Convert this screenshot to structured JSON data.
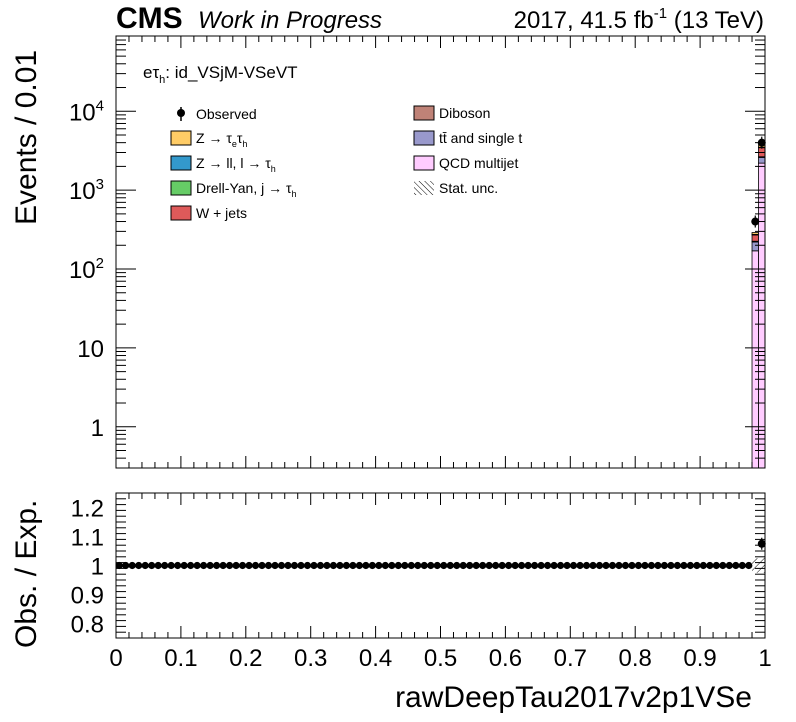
{
  "header": {
    "experiment": "CMS",
    "status": "Work in Progress",
    "lumi_prefix": "2017, 41.5 fb",
    "lumi_exp": "-1",
    "lumi_suffix": " (13 TeV)"
  },
  "channel": {
    "prefix": "eτ",
    "sub": "h",
    "suffix": ": id_VSjM-VSeVT"
  },
  "legend": {
    "observed": "Observed",
    "ztt": {
      "main": "Z → τ",
      "sub1": "e",
      "mid": "τ",
      "sub2": "h",
      "color": "#ffcc66"
    },
    "zll": {
      "main": "Z → ll, l → τ",
      "sub": "h",
      "color": "#3399cc"
    },
    "dy": {
      "main": "Drell-Yan, j → τ",
      "sub": "h",
      "color": "#66cc66"
    },
    "wjets": {
      "main": "W + jets",
      "color": "#de5a5a"
    },
    "diboson": {
      "main": "Diboson",
      "color": "#bf8277"
    },
    "ttbar": {
      "main": "tt̄ and single t",
      "color": "#9999cc"
    },
    "qcd": {
      "main": "QCD multijet",
      "color": "#ffccff"
    },
    "stat": {
      "main": "Stat. unc."
    }
  },
  "chart_data": [
    {
      "type": "bar",
      "stacked": true,
      "log_y": true,
      "ylabel": "Events / 0.01",
      "xlim": [
        0,
        1
      ],
      "ylim": [
        0.3,
        90000
      ],
      "ytick_labels": [
        "1",
        "10",
        "10^2",
        "10^3",
        "10^4"
      ],
      "bin_width": 0.01,
      "x_bins": [
        0.985,
        0.995
      ],
      "series": [
        {
          "name": "QCD multijet",
          "color": "#ffccff",
          "values": [
            170,
            2200
          ]
        },
        {
          "name": "tt̄ and single t",
          "color": "#9999cc",
          "values": [
            50,
            400
          ]
        },
        {
          "name": "Diboson",
          "color": "#bf8277",
          "values": [
            5,
            50
          ]
        },
        {
          "name": "W + jets",
          "color": "#de5a5a",
          "values": [
            45,
            800
          ]
        },
        {
          "name": "Drell-Yan, j → τh",
          "color": "#66cc66",
          "values": [
            2,
            20
          ]
        },
        {
          "name": "Z → ll, l → τh",
          "color": "#3399cc",
          "values": [
            3,
            30
          ]
        },
        {
          "name": "Z → τeτh",
          "color": "#ffcc66",
          "values": [
            15,
            300
          ]
        }
      ],
      "observed": {
        "name": "Observed",
        "x": [
          0.985,
          0.995
        ],
        "y": [
          400,
          4000
        ]
      }
    },
    {
      "type": "scatter",
      "ylabel": "Obs. / Exp.",
      "xlabel": "rawDeepTau2017v2p1VSe",
      "xlim": [
        0,
        1
      ],
      "ylim": [
        0.75,
        1.25
      ],
      "xtick_labels": [
        "0",
        "0.1",
        "0.2",
        "0.3",
        "0.4",
        "0.5",
        "0.6",
        "0.7",
        "0.8",
        "0.9",
        "1"
      ],
      "ytick_labels": [
        "0.8",
        "0.9",
        "1",
        "1.1",
        "1.2"
      ],
      "series": [
        {
          "name": "Observed",
          "x_start": 0.005,
          "x_step": 0.01,
          "y_flat": 1.0,
          "n_flat": 98,
          "last_x": 0.995,
          "last_y": 1.075
        }
      ]
    }
  ]
}
